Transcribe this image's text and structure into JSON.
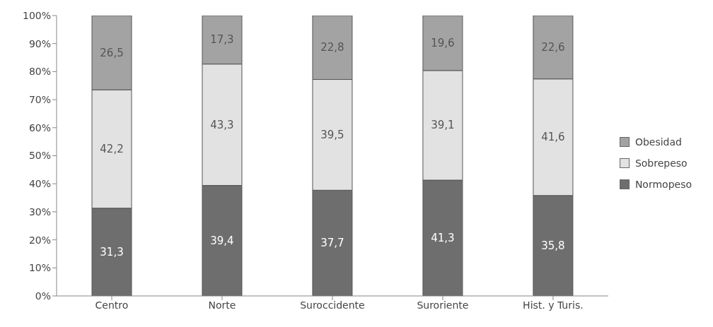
{
  "chart_data": {
    "type": "bar",
    "stacked": true,
    "categories": [
      "Centro",
      "Norte",
      "Suroccidente",
      "Suroriente",
      "Hist. y Turis."
    ],
    "series": [
      {
        "name": "Normopeso",
        "color": "#6e6e6e",
        "values": [
          31.3,
          39.4,
          37.7,
          41.3,
          35.8
        ],
        "value_labels": [
          "31,3",
          "39,4",
          "37,7",
          "41,3",
          "35,8"
        ]
      },
      {
        "name": "Sobrepeso",
        "color": "#e2e2e2",
        "values": [
          42.2,
          43.3,
          39.5,
          39.1,
          41.6
        ],
        "value_labels": [
          "42,2",
          "43,3",
          "39,5",
          "39,1",
          "41,6"
        ]
      },
      {
        "name": "Obesidad",
        "color": "#a3a3a3",
        "values": [
          26.5,
          17.3,
          22.8,
          19.6,
          22.6
        ],
        "value_labels": [
          "26,5",
          "17,3",
          "22,8",
          "19,6",
          "22,6"
        ]
      }
    ],
    "ylim": [
      0,
      100
    ],
    "yticks": [
      {
        "value": 0,
        "label": "0%"
      },
      {
        "value": 10,
        "label": "10%"
      },
      {
        "value": 20,
        "label": "20%"
      },
      {
        "value": 30,
        "label": "30%"
      },
      {
        "value": 40,
        "label": "40%"
      },
      {
        "value": 50,
        "label": "50%"
      },
      {
        "value": 60,
        "label": "60%"
      },
      {
        "value": 70,
        "label": "70%"
      },
      {
        "value": 80,
        "label": "80%"
      },
      {
        "value": 90,
        "label": "90%"
      },
      {
        "value": 100,
        "label": "100%"
      }
    ],
    "grid": false,
    "legend": "right"
  }
}
